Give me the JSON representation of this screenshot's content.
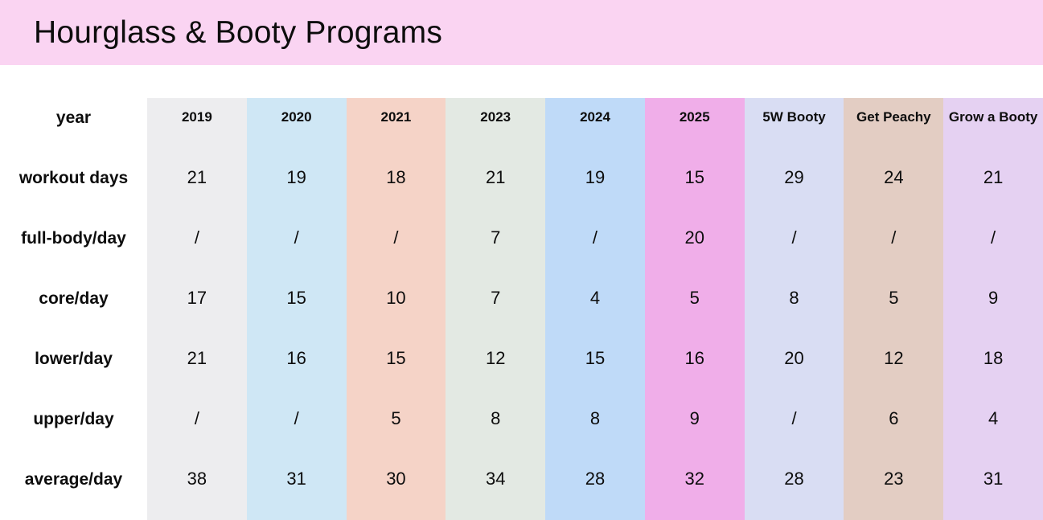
{
  "title": "Hourglass & Booty Programs",
  "colors": {
    "banner": "#fad4f2",
    "text": "#0d0d0d",
    "background": "#ffffff"
  },
  "table": {
    "corner_label": "year",
    "columns": [
      {
        "label": "2019",
        "color": "#ededef"
      },
      {
        "label": "2020",
        "color": "#cfe7f5"
      },
      {
        "label": "2021",
        "color": "#f5d3c7"
      },
      {
        "label": "2023",
        "color": "#e3e9e3"
      },
      {
        "label": "2024",
        "color": "#bfdaf8"
      },
      {
        "label": "2025",
        "color": "#f0aee9"
      },
      {
        "label": "5W Booty",
        "color": "#d9ddf3"
      },
      {
        "label": "Get Peachy",
        "color": "#e3cdc3"
      },
      {
        "label": "Grow a Booty",
        "color": "#e5d1f2"
      }
    ],
    "rows": [
      {
        "label": "workout days",
        "values": [
          "21",
          "19",
          "18",
          "21",
          "19",
          "15",
          "29",
          "24",
          "21"
        ]
      },
      {
        "label": "full-body/day",
        "values": [
          "/",
          "/",
          "/",
          "7",
          "/",
          "20",
          "/",
          "/",
          "/"
        ]
      },
      {
        "label": "core/day",
        "values": [
          "17",
          "15",
          "10",
          "7",
          "4",
          "5",
          "8",
          "5",
          "9"
        ]
      },
      {
        "label": "lower/day",
        "values": [
          "21",
          "16",
          "15",
          "12",
          "15",
          "16",
          "20",
          "12",
          "18"
        ]
      },
      {
        "label": "upper/day",
        "values": [
          "/",
          "/",
          "5",
          "8",
          "8",
          "9",
          "/",
          "6",
          "4"
        ]
      },
      {
        "label": "average/day",
        "values": [
          "38",
          "31",
          "30",
          "34",
          "28",
          "32",
          "28",
          "23",
          "31"
        ]
      }
    ]
  },
  "chart_data": {
    "type": "table",
    "title": "Hourglass & Booty Programs",
    "row_header": "year",
    "columns": [
      "2019",
      "2020",
      "2021",
      "2023",
      "2024",
      "2025",
      "5W Booty",
      "Get Peachy",
      "Grow a Booty"
    ],
    "rows": [
      {
        "label": "workout days",
        "values": [
          21,
          19,
          18,
          21,
          19,
          15,
          29,
          24,
          21
        ]
      },
      {
        "label": "full-body/day",
        "values": [
          null,
          null,
          null,
          7,
          null,
          20,
          null,
          null,
          null
        ]
      },
      {
        "label": "core/day",
        "values": [
          17,
          15,
          10,
          7,
          4,
          5,
          8,
          5,
          9
        ]
      },
      {
        "label": "lower/day",
        "values": [
          21,
          16,
          15,
          12,
          15,
          16,
          20,
          12,
          18
        ]
      },
      {
        "label": "upper/day",
        "values": [
          null,
          null,
          5,
          8,
          8,
          9,
          null,
          6,
          4
        ]
      },
      {
        "label": "average/day",
        "values": [
          38,
          31,
          30,
          34,
          28,
          32,
          28,
          23,
          31
        ]
      }
    ],
    "missing_marker": "/"
  }
}
